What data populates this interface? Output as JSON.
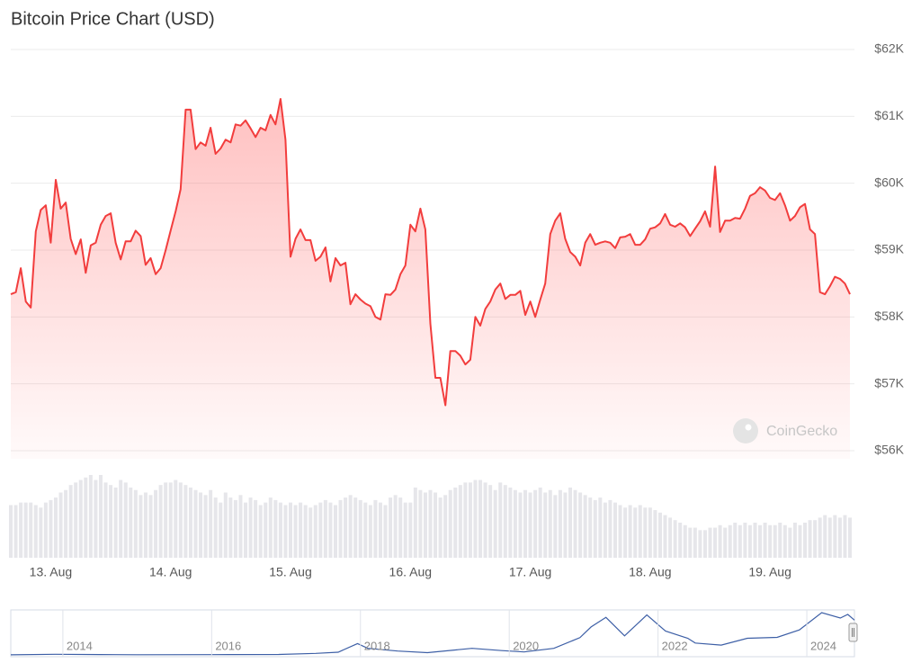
{
  "chart_data": [
    {
      "type": "line",
      "title": "Bitcoin Price Chart (USD)",
      "watermark": "CoinGecko",
      "color": "#f23d3d",
      "categories": [
        null,
        null,
        null,
        null,
        null,
        null,
        null,
        null,
        "13. Aug",
        null,
        null,
        null,
        null,
        null,
        null,
        null,
        null,
        null,
        null,
        null,
        null,
        null,
        null,
        null,
        null,
        null,
        null,
        null,
        null,
        null,
        null,
        null,
        "14. Aug",
        null,
        null,
        null,
        null,
        null,
        null,
        null,
        null,
        null,
        null,
        null,
        null,
        null,
        null,
        null,
        null,
        null,
        null,
        null,
        null,
        null,
        null,
        null,
        "15. Aug",
        null,
        null,
        null,
        null,
        null,
        null,
        null,
        null,
        null,
        null,
        null,
        null,
        null,
        null,
        null,
        null,
        null,
        null,
        null,
        null,
        null,
        null,
        null,
        "16. Aug",
        null,
        null,
        null,
        null,
        null,
        null,
        null,
        null,
        null,
        null,
        null,
        null,
        null,
        null,
        null,
        null,
        null,
        null,
        null,
        null,
        null,
        null,
        null,
        "17. Aug",
        null,
        null,
        null,
        null,
        null,
        null,
        null,
        null,
        null,
        null,
        null,
        null,
        null,
        null,
        null,
        null,
        null,
        null,
        null,
        null,
        null,
        null,
        null,
        "18. Aug",
        null,
        null,
        null,
        null,
        null,
        null,
        null,
        null,
        null,
        null,
        null,
        null,
        null,
        null,
        null,
        null,
        null,
        null,
        null,
        null,
        null,
        null,
        null,
        "19. Aug",
        null,
        null,
        null,
        null,
        null,
        null,
        null,
        null,
        null,
        null,
        null,
        null,
        null,
        null,
        null,
        null
      ],
      "values": [
        58340,
        58370,
        58730,
        58230,
        58140,
        59280,
        59600,
        59670,
        59110,
        60050,
        59620,
        59710,
        59170,
        58940,
        59160,
        58660,
        59070,
        59110,
        59380,
        59510,
        59550,
        59110,
        58860,
        59130,
        59130,
        59290,
        59210,
        58780,
        58880,
        58640,
        58730,
        59000,
        59290,
        59580,
        59910,
        61100,
        61100,
        60510,
        60610,
        60560,
        60830,
        60440,
        60520,
        60650,
        60610,
        60880,
        60860,
        60940,
        60820,
        60690,
        60830,
        60790,
        61020,
        60880,
        61260,
        60650,
        58900,
        59170,
        59310,
        59150,
        59150,
        58840,
        58900,
        59040,
        58530,
        58880,
        58770,
        58810,
        58190,
        58340,
        58260,
        58200,
        58160,
        58000,
        57960,
        58340,
        58330,
        58410,
        58640,
        58770,
        59380,
        59280,
        59620,
        59310,
        57900,
        57090,
        57090,
        56680,
        57490,
        57490,
        57420,
        57290,
        57360,
        58000,
        57870,
        58120,
        58230,
        58410,
        58500,
        58270,
        58330,
        58330,
        58390,
        58030,
        58230,
        58000,
        58260,
        58500,
        59240,
        59440,
        59550,
        59170,
        58970,
        58900,
        58770,
        59110,
        59240,
        59080,
        59110,
        59130,
        59110,
        59030,
        59190,
        59200,
        59240,
        59080,
        59080,
        59160,
        59320,
        59340,
        59400,
        59540,
        59380,
        59350,
        59400,
        59340,
        59210,
        59320,
        59430,
        59580,
        59350,
        60250,
        59270,
        59440,
        59440,
        59480,
        59470,
        59620,
        59810,
        59850,
        59940,
        59890,
        59780,
        59750,
        59850,
        59670,
        59440,
        59510,
        59640,
        59690,
        59310,
        59240,
        58370,
        58340,
        58460,
        58600,
        58570,
        58500,
        58340
      ],
      "volume": {
        "color": "#e6e6ea",
        "values": [
          21,
          21,
          22,
          22,
          22,
          21,
          20,
          22,
          23,
          24,
          26,
          27,
          29,
          30,
          31,
          32,
          33,
          31,
          33,
          30,
          29,
          28,
          31,
          30,
          28,
          27,
          25,
          26,
          25,
          27,
          29,
          30,
          30,
          31,
          30,
          29,
          28,
          27,
          26,
          25,
          27,
          24,
          22,
          26,
          24,
          23,
          25,
          22,
          24,
          23,
          21,
          22,
          24,
          23,
          22,
          21,
          22,
          21,
          22,
          21,
          20,
          21,
          22,
          23,
          22,
          21,
          23,
          24,
          25,
          24,
          23,
          22,
          21,
          23,
          22,
          21,
          24,
          25,
          24,
          22,
          22,
          28,
          27,
          26,
          27,
          26,
          24,
          25,
          27,
          28,
          29,
          30,
          30,
          31,
          31,
          30,
          29,
          27,
          30,
          29,
          28,
          27,
          26,
          27,
          26,
          27,
          28,
          26,
          27,
          25,
          27,
          26,
          28,
          27,
          26,
          25,
          24,
          23,
          24,
          22,
          23,
          22,
          21,
          20,
          21,
          20,
          21,
          20,
          20,
          19,
          18,
          17,
          16,
          15,
          14,
          13,
          12,
          12,
          11,
          11,
          12,
          12,
          13,
          12,
          13,
          14,
          13,
          14,
          13,
          14,
          13,
          14,
          13,
          13,
          14,
          13,
          12,
          14,
          13,
          14,
          15,
          15,
          16,
          17,
          16,
          17,
          16,
          17,
          16
        ]
      },
      "ylim": [
        56000,
        62000
      ],
      "yticks": [
        {
          "value": 56000,
          "label": "$56K"
        },
        {
          "value": 57000,
          "label": "$57K"
        },
        {
          "value": 58000,
          "label": "$58K"
        },
        {
          "value": 59000,
          "label": "$59K"
        },
        {
          "value": 60000,
          "label": "$60K"
        },
        {
          "value": 61000,
          "label": "$61K"
        },
        {
          "value": 62000,
          "label": "$62K"
        }
      ],
      "grid": true
    },
    {
      "type": "line",
      "color": "#3d5fa6",
      "x": [
        2013.3,
        2013.9,
        2014.5,
        2015,
        2016,
        2016.9,
        2017.4,
        2017.7,
        2017.96,
        2018.1,
        2018.5,
        2018.9,
        2019.5,
        2019.9,
        2020.2,
        2020.6,
        2020.95,
        2021.1,
        2021.3,
        2021.55,
        2021.85,
        2022.1,
        2022.4,
        2022.5,
        2022.85,
        2023.2,
        2023.6,
        2023.9,
        2024.2,
        2024.45,
        2024.55,
        2024.64
      ],
      "values": [
        100,
        1000,
        600,
        250,
        430,
        800,
        2500,
        4500,
        19000,
        11000,
        6500,
        3800,
        11000,
        7200,
        5000,
        11000,
        29000,
        47000,
        63000,
        32000,
        67000,
        40000,
        28000,
        20000,
        16500,
        28000,
        29500,
        42000,
        71000,
        62000,
        68000,
        58500
      ],
      "xlim": [
        2013.3,
        2024.64
      ],
      "xticks": [
        2014,
        2016,
        2018,
        2020,
        2022,
        2024
      ],
      "grid": true
    }
  ]
}
